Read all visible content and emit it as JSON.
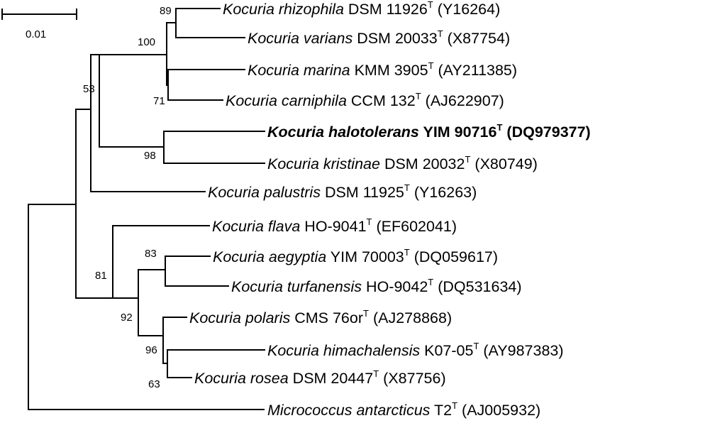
{
  "scale_bar": {
    "label": "0.01",
    "value": 0.01
  },
  "taxa": [
    {
      "id": "rhizophila",
      "genus": "Kocuria",
      "species": "rhizophila",
      "strain": "DSM 11926",
      "sup": "T",
      "accession": "(Y16264)",
      "bold": false
    },
    {
      "id": "varians",
      "genus": "Kocuria",
      "species": "varians",
      "strain": "DSM 20033",
      "sup": "T",
      "accession": "(X87754)",
      "bold": false
    },
    {
      "id": "marina",
      "genus": "Kocuria",
      "species": "marina",
      "strain": "KMM 3905",
      "sup": "T",
      "accession": "(AY211385)",
      "bold": false
    },
    {
      "id": "carniphila",
      "genus": "Kocuria",
      "species": "carniphila",
      "strain": "CCM 132",
      "sup": "T",
      "accession": "(AJ622907)",
      "bold": false
    },
    {
      "id": "halotolerans",
      "genus": "Kocuria",
      "species": "halotolerans",
      "strain": "YIM 90716",
      "sup": "T",
      "accession": "(DQ979377)",
      "bold": true
    },
    {
      "id": "kristinae",
      "genus": "Kocuria",
      "species": "kristinae",
      "strain": "DSM 20032",
      "sup": "T",
      "accession": "(X80749)",
      "bold": false
    },
    {
      "id": "palustris",
      "genus": "Kocuria",
      "species": "palustris",
      "strain": "DSM 11925",
      "sup": "T",
      "accession": "(Y16263)",
      "bold": false
    },
    {
      "id": "flava",
      "genus": "Kocuria",
      "species": "flava",
      "strain": "HO-9041",
      "sup": "T",
      "accession": "(EF602041)",
      "bold": false
    },
    {
      "id": "aegyptia",
      "genus": "Kocuria",
      "species": "aegyptia",
      "strain": "YIM 70003",
      "sup": "T",
      "accession": "(DQ059617)",
      "bold": false
    },
    {
      "id": "turfanensis",
      "genus": "Kocuria",
      "species": "turfanensis",
      "strain": "HO-9042",
      "sup": "T",
      "accession": "(DQ531634)",
      "bold": false
    },
    {
      "id": "polaris",
      "genus": "Kocuria",
      "species": "polaris",
      "strain": "CMS 76or",
      "sup": "T",
      "accession": "(AJ278868)",
      "bold": false
    },
    {
      "id": "himachalensis",
      "genus": "Kocuria",
      "species": "himachalensis",
      "strain": "K07-05",
      "sup": "T",
      "accession": "(AY987383)",
      "bold": false
    },
    {
      "id": "rosea",
      "genus": "Kocuria",
      "species": "rosea",
      "strain": "DSM 20447",
      "sup": "T",
      "accession": "(X87756)",
      "bold": false
    },
    {
      "id": "antarcticus",
      "genus": "Micrococcus",
      "species": "antarcticus",
      "strain": "T2",
      "sup": "T",
      "accession": "(AJ005932)",
      "bold": false
    }
  ],
  "bootstrap": [
    {
      "node": "rhizophila-varians",
      "value": "89"
    },
    {
      "node": "rhizophila-to-carniphila",
      "value": "100"
    },
    {
      "node": "marina-carniphila",
      "value": "71"
    },
    {
      "node": "kocuria-core",
      "value": "53"
    },
    {
      "node": "halotolerans-kristinae",
      "value": "98"
    },
    {
      "node": "flava-to-rosea",
      "value": "81"
    },
    {
      "node": "aegyptia-to-rosea",
      "value": "92"
    },
    {
      "node": "aegyptia-turfanensis",
      "value": "83"
    },
    {
      "node": "polaris-to-rosea",
      "value": "96"
    },
    {
      "node": "himachalensis-rosea",
      "value": "63"
    }
  ]
}
